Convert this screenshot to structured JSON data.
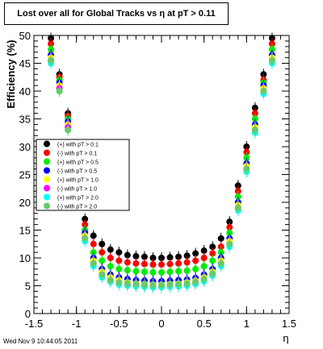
{
  "chart_data": {
    "type": "scatter",
    "title": "Lost over all for Global Tracks vs   η at pT > 0.11",
    "xlabel": "η",
    "ylabel": "Efficiency (%)",
    "xlim": [
      -1.5,
      1.5
    ],
    "ylim": [
      0,
      50
    ],
    "xticks": [
      "-1.5",
      "-1",
      "-0.5",
      "0",
      "0.5",
      "1",
      "1.5"
    ],
    "yticks": [
      "0",
      "5",
      "10",
      "15",
      "20",
      "25",
      "30",
      "35",
      "40",
      "45",
      "50"
    ],
    "grid": false,
    "legend_position": "middle-left",
    "series": [
      {
        "name": "(+) with pT > 0.1",
        "color": "#000000",
        "x": [
          -1.3,
          -1.2,
          -1.1,
          -1.0,
          -0.9,
          -0.8,
          -0.7,
          -0.6,
          -0.5,
          -0.4,
          -0.3,
          -0.2,
          -0.1,
          0.0,
          0.1,
          0.2,
          0.3,
          0.4,
          0.5,
          0.6,
          0.7,
          0.8,
          0.9,
          1.0,
          1.1,
          1.2,
          1.3
        ],
        "y": [
          49.5,
          43.0,
          36.0,
          24.0,
          17.0,
          14.0,
          12.5,
          11.5,
          11.0,
          10.5,
          10.3,
          10.2,
          10.0,
          10.0,
          10.1,
          10.2,
          10.4,
          10.8,
          11.3,
          12.0,
          13.5,
          16.5,
          23.0,
          30.0,
          37.0,
          43.0,
          49.5
        ]
      },
      {
        "name": "(-) with pT > 0.1",
        "color": "#ff0000",
        "x": [
          -1.3,
          -1.2,
          -1.1,
          -1.0,
          -0.9,
          -0.8,
          -0.7,
          -0.6,
          -0.5,
          -0.4,
          -0.3,
          -0.2,
          -0.1,
          0.0,
          0.1,
          0.2,
          0.3,
          0.4,
          0.5,
          0.6,
          0.7,
          0.8,
          0.9,
          1.0,
          1.1,
          1.2,
          1.3
        ],
        "y": [
          48.5,
          42.5,
          35.5,
          23.0,
          16.0,
          12.5,
          11.0,
          10.0,
          9.5,
          9.2,
          9.0,
          8.9,
          8.8,
          8.8,
          8.9,
          9.0,
          9.2,
          9.5,
          10.0,
          10.8,
          12.0,
          15.5,
          22.0,
          29.0,
          36.0,
          42.0,
          48.5
        ]
      },
      {
        "name": "(+) with pT > 0.5",
        "color": "#00ee00",
        "x": [
          -1.3,
          -1.2,
          -1.1,
          -1.0,
          -0.9,
          -0.8,
          -0.7,
          -0.6,
          -0.5,
          -0.4,
          -0.3,
          -0.2,
          -0.1,
          0.0,
          0.1,
          0.2,
          0.3,
          0.4,
          0.5,
          0.6,
          0.7,
          0.8,
          0.9,
          1.0,
          1.1,
          1.2,
          1.3
        ],
        "y": [
          47.5,
          42.0,
          35.0,
          22.0,
          15.0,
          11.0,
          9.5,
          8.5,
          8.0,
          7.8,
          7.6,
          7.5,
          7.4,
          7.4,
          7.5,
          7.6,
          7.7,
          8.0,
          8.5,
          9.5,
          11.0,
          14.5,
          21.0,
          28.0,
          35.0,
          41.5,
          47.5
        ]
      },
      {
        "name": "(-) with pT > 0.5",
        "color": "#0000ff",
        "x": [
          -1.3,
          -1.2,
          -1.1,
          -1.0,
          -0.9,
          -0.8,
          -0.7,
          -0.6,
          -0.5,
          -0.4,
          -0.3,
          -0.2,
          -0.1,
          0.0,
          0.1,
          0.2,
          0.3,
          0.4,
          0.5,
          0.6,
          0.7,
          0.8,
          0.9,
          1.0,
          1.1,
          1.2,
          1.3
        ],
        "y": [
          46.5,
          41.5,
          34.5,
          21.0,
          14.5,
          10.0,
          8.0,
          7.0,
          6.5,
          6.2,
          6.0,
          5.9,
          5.8,
          5.8,
          5.9,
          6.0,
          6.1,
          6.4,
          7.0,
          8.0,
          10.0,
          13.5,
          20.0,
          27.0,
          34.0,
          41.0,
          46.5
        ]
      },
      {
        "name": "(+) with pT > 1.0",
        "color": "#ffff00",
        "x": [
          -1.3,
          -1.2,
          -1.1,
          -1.0,
          -0.9,
          -0.8,
          -0.7,
          -0.6,
          -0.5,
          -0.4,
          -0.3,
          -0.2,
          -0.1,
          0.0,
          0.1,
          0.2,
          0.3,
          0.4,
          0.5,
          0.6,
          0.7,
          0.8,
          0.9,
          1.0,
          1.1,
          1.2,
          1.3
        ],
        "y": [
          46.0,
          41.0,
          34.0,
          20.5,
          14.0,
          9.5,
          7.5,
          6.5,
          6.0,
          5.6,
          5.4,
          5.3,
          5.2,
          5.2,
          5.3,
          5.4,
          5.6,
          5.9,
          6.5,
          7.5,
          9.5,
          13.0,
          19.5,
          26.5,
          33.5,
          40.5,
          46.0
        ]
      },
      {
        "name": "(-) with pT > 1.0",
        "color": "#ff00ff",
        "x": [
          -1.3,
          -1.2,
          -1.1,
          -1.0,
          -0.9,
          -0.8,
          -0.7,
          -0.6,
          -0.5,
          -0.4,
          -0.3,
          -0.2,
          -0.1,
          0.0,
          0.1,
          0.2,
          0.3,
          0.4,
          0.5,
          0.6,
          0.7,
          0.8,
          0.9,
          1.0,
          1.1,
          1.2,
          1.3
        ],
        "y": [
          45.5,
          40.5,
          33.5,
          20.0,
          13.5,
          9.0,
          7.0,
          6.0,
          5.5,
          5.2,
          5.0,
          4.9,
          4.8,
          4.8,
          4.9,
          5.0,
          5.2,
          5.5,
          6.0,
          7.0,
          9.0,
          12.5,
          19.0,
          26.0,
          33.0,
          40.0,
          45.5
        ]
      },
      {
        "name": "(+) with pT > 2.0",
        "color": "#00ffff",
        "x": [
          -1.3,
          -1.2,
          -1.1,
          -1.0,
          -0.9,
          -0.8,
          -0.7,
          -0.6,
          -0.5,
          -0.4,
          -0.3,
          -0.2,
          -0.1,
          0.0,
          0.1,
          0.2,
          0.3,
          0.4,
          0.5,
          0.6,
          0.7,
          0.8,
          0.9,
          1.0,
          1.1,
          1.2,
          1.3
        ],
        "y": [
          45.0,
          40.0,
          33.0,
          19.5,
          13.0,
          8.5,
          6.5,
          5.7,
          5.2,
          5.0,
          4.9,
          4.8,
          4.7,
          4.7,
          4.8,
          4.9,
          5.0,
          5.3,
          5.8,
          6.8,
          8.5,
          12.0,
          18.5,
          25.5,
          32.5,
          39.5,
          45.0
        ]
      },
      {
        "name": "(-) with pT > 2.0",
        "color": "#66cc66",
        "x": [
          -1.3,
          -1.2,
          -1.1,
          -1.0,
          -0.9,
          -0.8,
          -0.7,
          -0.6,
          -0.5,
          -0.4,
          -0.3,
          -0.2,
          -0.1,
          0.0,
          0.1,
          0.2,
          0.3,
          0.4,
          0.5,
          0.6,
          0.7,
          0.8,
          0.9,
          1.0,
          1.1,
          1.2,
          1.3
        ],
        "y": [
          45.5,
          40.0,
          33.0,
          19.5,
          13.5,
          9.0,
          7.0,
          6.0,
          5.6,
          5.4,
          5.3,
          5.2,
          5.1,
          5.1,
          5.2,
          5.3,
          5.4,
          5.7,
          6.2,
          7.2,
          9.0,
          12.5,
          19.0,
          26.0,
          33.0,
          40.0,
          45.5
        ]
      }
    ]
  },
  "footer": {
    "timestamp": "Wed Nov  9 10:44:05 2011"
  }
}
